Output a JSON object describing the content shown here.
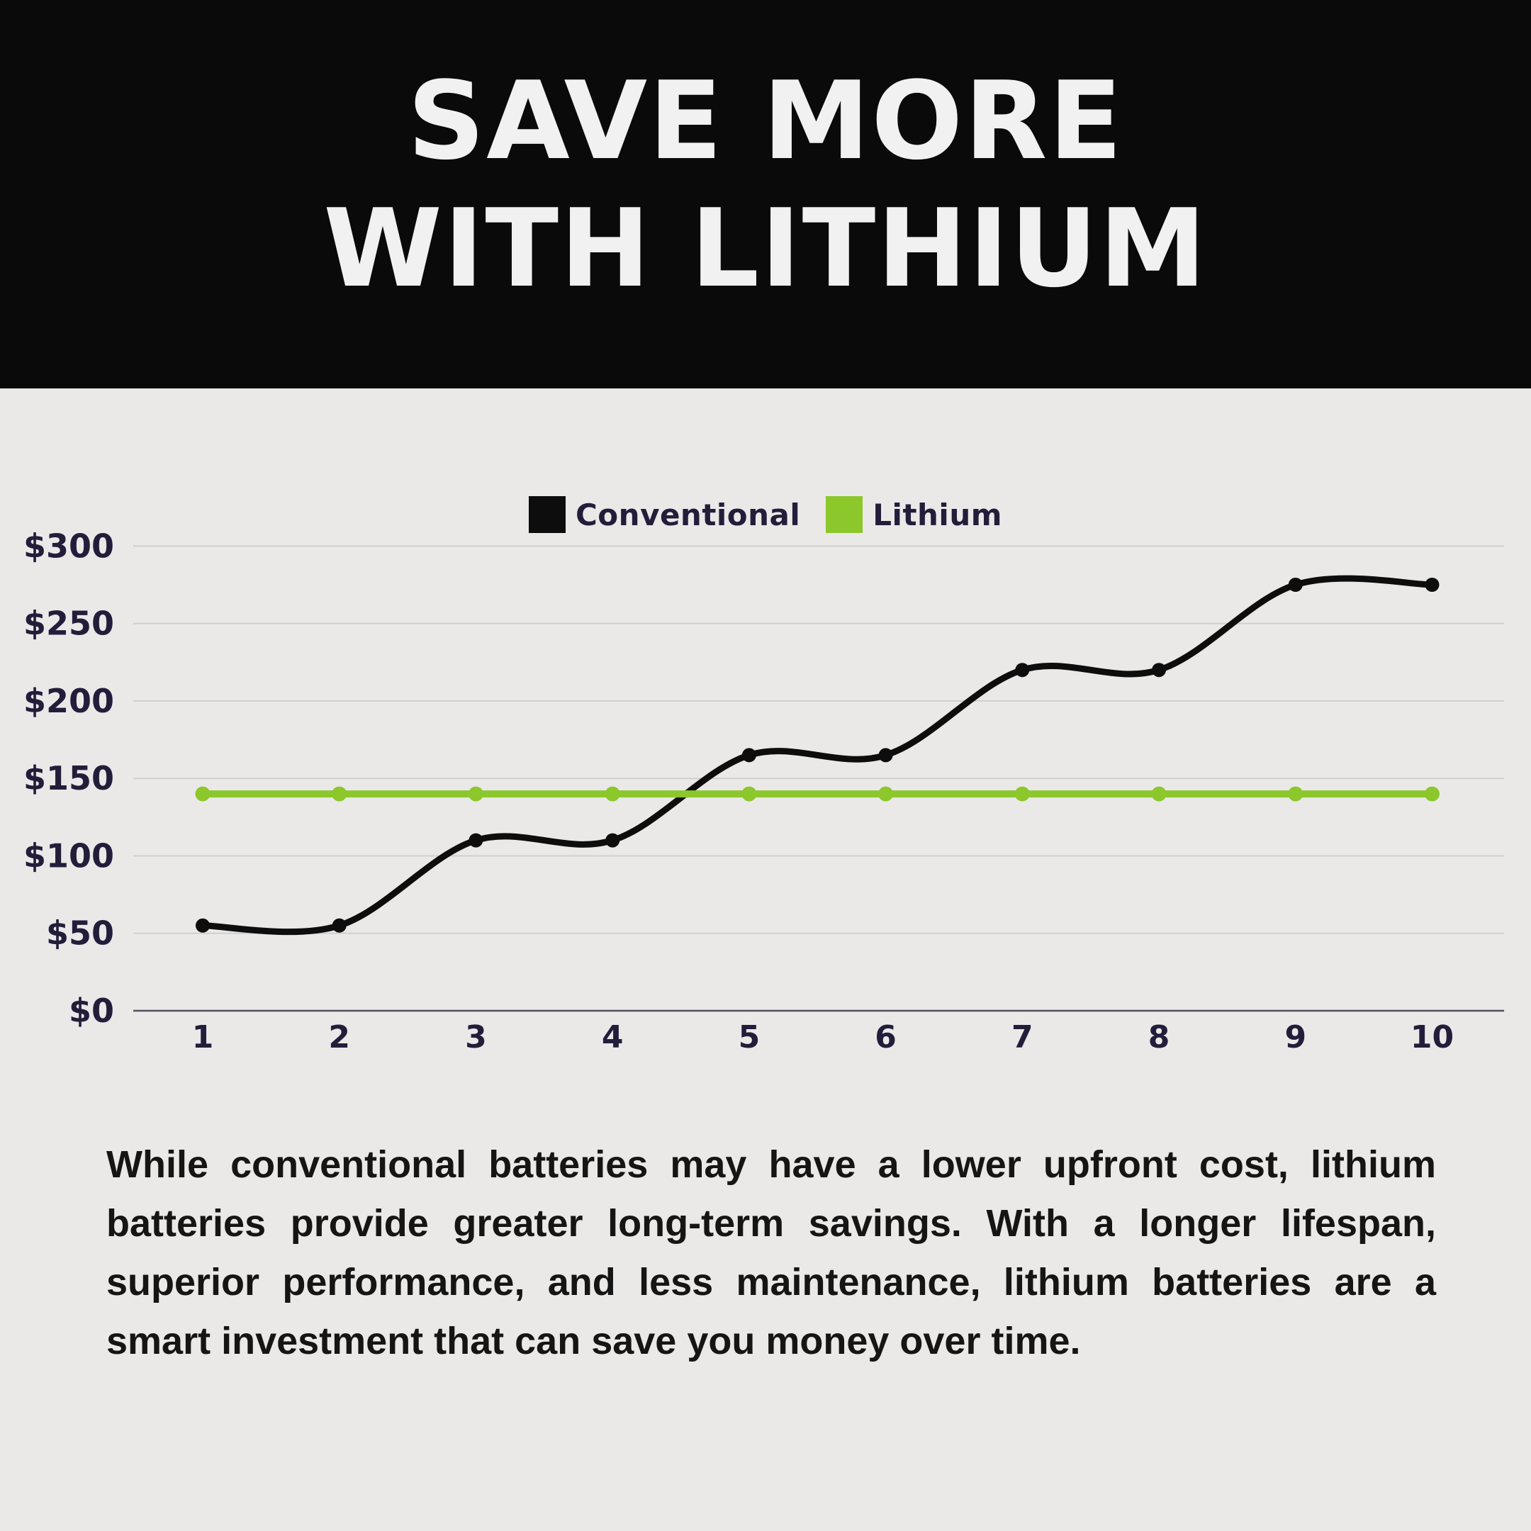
{
  "header": {
    "title_line1": "SAVE MORE",
    "title_line2": "WITH LITHIUM"
  },
  "chart_data": {
    "type": "line",
    "x": [
      1,
      2,
      3,
      4,
      5,
      6,
      7,
      8,
      9,
      10
    ],
    "series": [
      {
        "name": "Conventional",
        "color": "#0D0D0D",
        "values": [
          55,
          55,
          110,
          110,
          165,
          165,
          220,
          220,
          275,
          275
        ]
      },
      {
        "name": "Lithium",
        "color": "#8CC72B",
        "values": [
          140,
          140,
          140,
          140,
          140,
          140,
          140,
          140,
          140,
          140
        ]
      }
    ],
    "y_ticks": [
      0,
      50,
      100,
      150,
      200,
      250,
      300
    ],
    "y_tick_prefix": "$",
    "ylim": [
      0,
      300
    ],
    "grid": true,
    "legend_position": "top-center"
  },
  "body": {
    "paragraph": "While conventional batteries may have a lower upfront cost, lithium batteries provide greater long-term savings. With a longer lifespan, superior performance, and less maintenance, lithium batteries are a smart investment that can save you money over time."
  },
  "colors": {
    "background": "#EAE9E8",
    "header_bg": "#0A0A0A",
    "title": "#F2F1F1",
    "axis_text": "#221E3A",
    "gridline": "#CFCFCF",
    "axis_line": "#50505E",
    "paragraph": "#151515"
  }
}
